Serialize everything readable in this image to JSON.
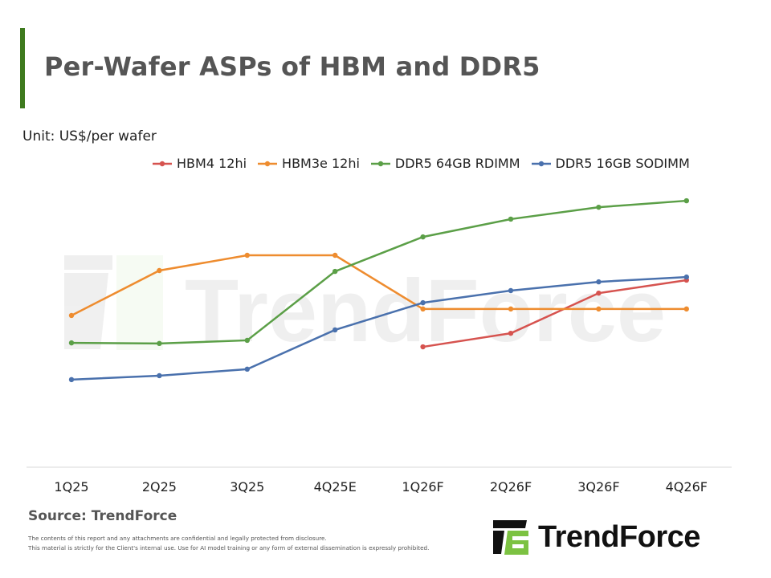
{
  "title": "Per-Wafer ASPs of HBM and DDR5",
  "unit_label": "Unit: US$/per wafer",
  "source": "Source: TrendForce",
  "disclaimer": [
    "The contents of this report and any attachments are confidential and legally protected from disclosure.",
    "This material is strictly for the Client's internal use. Use for AI model training or any form of external dissemination is expressly prohibited."
  ],
  "logo": {
    "text": "TrendForce",
    "watermark": "TrendForce"
  },
  "colors": {
    "accent": "#3e7a1e",
    "logo_green": "#7cc242"
  },
  "chart_data": {
    "type": "line",
    "title": "Per-Wafer ASPs of HBM and DDR5",
    "ylabel": "Unit: US$/per wafer",
    "y_axis_labels_shown": false,
    "y_values_note_scale": "relative (no y-axis printed)",
    "ylim": [
      0,
      100
    ],
    "grid": false,
    "legend_position": "top",
    "categories": [
      "1Q25",
      "2Q25",
      "3Q25",
      "4Q25E",
      "1Q26F",
      "2Q26F",
      "3Q26F",
      "4Q26F"
    ],
    "series": [
      {
        "name": "HBM4 12hi",
        "color": "#d6534f",
        "values": [
          null,
          null,
          null,
          null,
          42.6,
          47.4,
          61.6,
          66.2
        ]
      },
      {
        "name": "HBM3e 12hi",
        "color": "#ee8c2f",
        "values": [
          53.7,
          69.6,
          75.0,
          75.0,
          56.0,
          56.0,
          56.0,
          56.0
        ]
      },
      {
        "name": "DDR5 64GB RDIMM",
        "color": "#5b9f47",
        "values": [
          44.0,
          43.8,
          44.9,
          69.3,
          81.5,
          87.8,
          92.0,
          94.3
        ]
      },
      {
        "name": "DDR5 16GB SODIMM",
        "color": "#4a71ad",
        "values": [
          31.0,
          32.4,
          34.7,
          48.6,
          58.2,
          62.5,
          65.6,
          67.3
        ]
      }
    ]
  }
}
